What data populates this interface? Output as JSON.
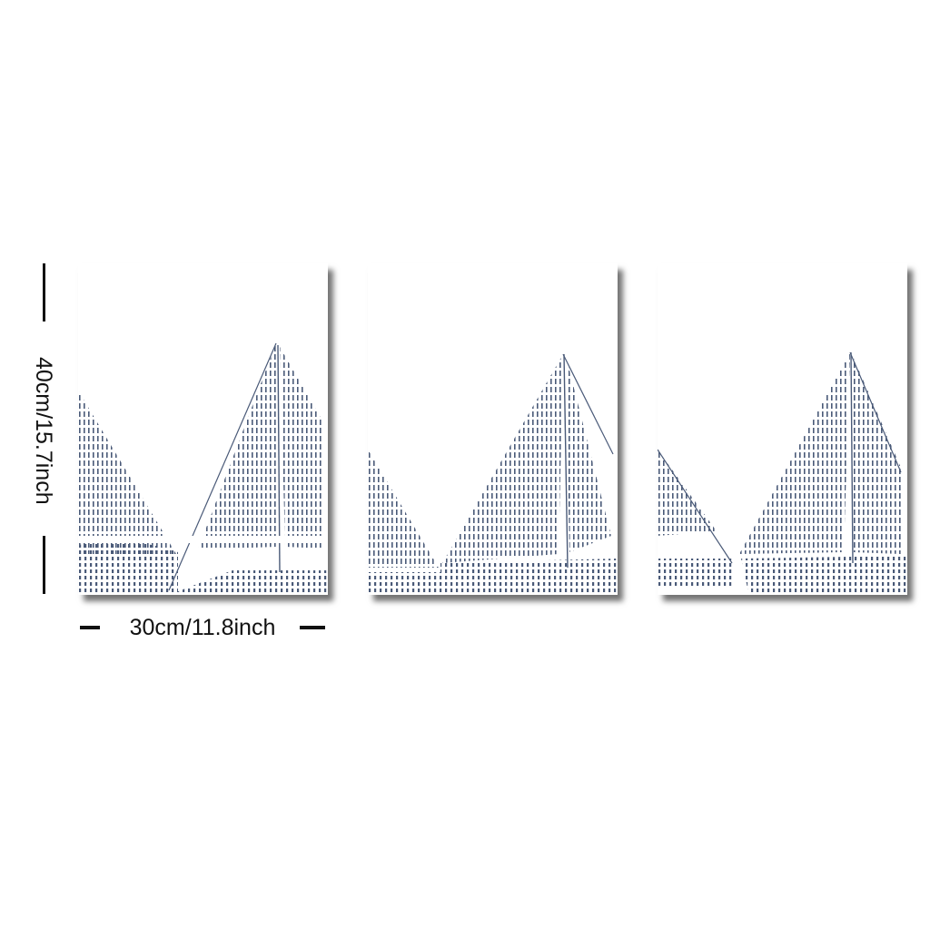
{
  "dimensions": {
    "height_label": "40cm/15.7inch",
    "width_label": "30cm/11.8inch"
  },
  "artwork": {
    "panel_count": 3,
    "subject": "sailboat sails in dashed stroke pattern",
    "ink_color": "#4a5a78",
    "paper_color": "#ffffff"
  }
}
